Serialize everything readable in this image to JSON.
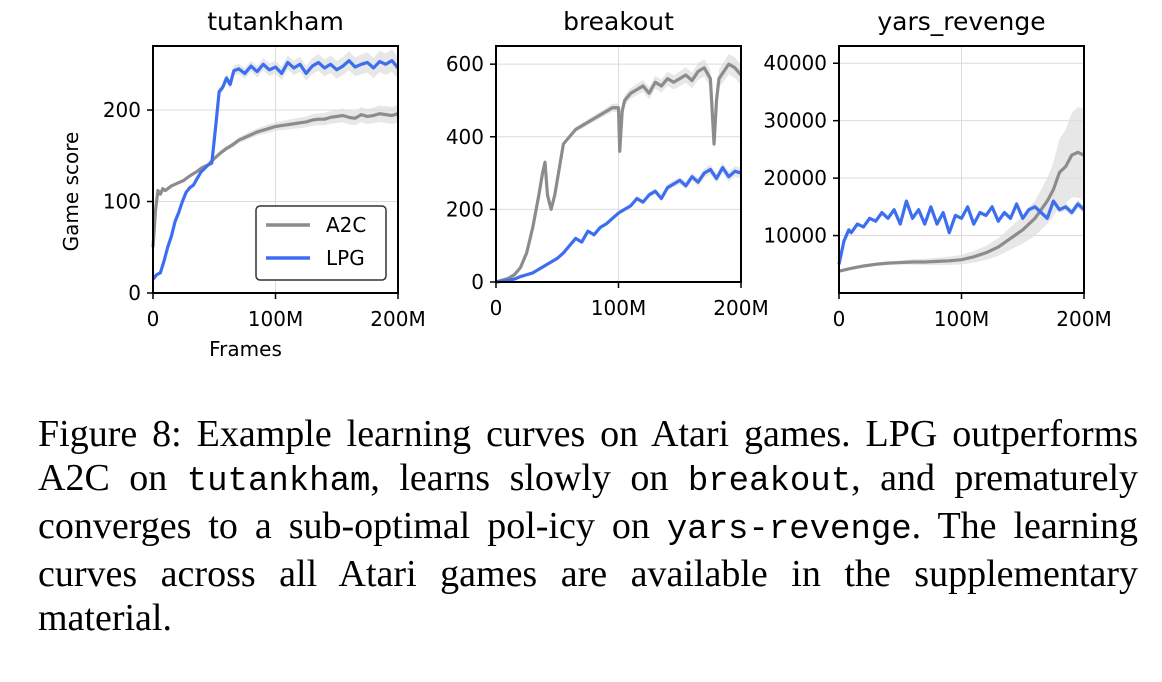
{
  "caption": {
    "seg1": "Figure 8:  Example learning curves on Atari games. LPG outperforms A2C on ",
    "code1": "tutankham",
    "seg2": ", learns slowly on ",
    "code2": "breakout",
    "seg3": ", and prematurely converges to a sub-optimal pol-icy on ",
    "code3": "yars-revenge",
    "seg4": ". The learning curves across all Atari games are available in the supplementary material."
  },
  "colors": {
    "A2C": "#8c8c8c",
    "LPG": "#3c6ef0",
    "band": "#dddddd",
    "grid": "#dcdcdc"
  },
  "chart_data": [
    {
      "type": "line",
      "title": "tutankham",
      "xlabel": "Frames",
      "ylabel": "Game score",
      "xlim": [
        0,
        200
      ],
      "ylim": [
        0,
        270
      ],
      "xticks": [
        0,
        100,
        200
      ],
      "xticklabels": [
        "0",
        "100M",
        "200M"
      ],
      "yticks": [
        0,
        100,
        200
      ],
      "yticklabels": [
        "0",
        "100",
        "200"
      ],
      "grid": true,
      "legend": "lower-right",
      "series": [
        {
          "name": "A2C",
          "x": [
            0,
            2,
            4,
            6,
            8,
            10,
            15,
            20,
            25,
            30,
            35,
            40,
            45,
            50,
            55,
            60,
            65,
            70,
            75,
            80,
            85,
            90,
            95,
            100,
            105,
            110,
            115,
            120,
            125,
            130,
            135,
            140,
            145,
            150,
            155,
            160,
            165,
            170,
            175,
            180,
            185,
            190,
            195,
            200
          ],
          "y": [
            50,
            90,
            112,
            108,
            114,
            112,
            117,
            120,
            123,
            128,
            132,
            137,
            140,
            147,
            153,
            158,
            162,
            167,
            170,
            173,
            176,
            178,
            180,
            182,
            183,
            184,
            185,
            186,
            187,
            189,
            190,
            190,
            192,
            193,
            194,
            192,
            191,
            195,
            193,
            194,
            196,
            195,
            194,
            196
          ]
        },
        {
          "name": "LPG",
          "x": [
            0,
            3,
            6,
            9,
            12,
            15,
            18,
            21,
            24,
            27,
            30,
            33,
            36,
            39,
            42,
            45,
            48,
            51,
            54,
            57,
            60,
            63,
            66,
            70,
            75,
            80,
            85,
            90,
            95,
            100,
            105,
            110,
            115,
            120,
            125,
            130,
            135,
            140,
            145,
            150,
            155,
            160,
            165,
            170,
            175,
            180,
            185,
            190,
            195,
            200
          ],
          "y": [
            15,
            20,
            22,
            35,
            50,
            62,
            78,
            88,
            100,
            110,
            115,
            118,
            125,
            132,
            136,
            140,
            142,
            180,
            220,
            225,
            235,
            228,
            243,
            245,
            240,
            248,
            242,
            250,
            244,
            247,
            240,
            252,
            246,
            250,
            240,
            248,
            252,
            246,
            250,
            244,
            248,
            254,
            247,
            250,
            252,
            246,
            253,
            250,
            254,
            246
          ]
        }
      ]
    },
    {
      "type": "line",
      "title": "breakout",
      "xlim": [
        0,
        200
      ],
      "ylim": [
        0,
        650
      ],
      "xticks": [
        0,
        100,
        200
      ],
      "xticklabels": [
        "0",
        "100M",
        "200M"
      ],
      "yticks": [
        0,
        200,
        400,
        600
      ],
      "yticklabels": [
        "0",
        "200",
        "400",
        "600"
      ],
      "grid": true,
      "series": [
        {
          "name": "A2C",
          "x": [
            0,
            5,
            10,
            15,
            20,
            25,
            30,
            35,
            38,
            40,
            42,
            45,
            48,
            50,
            55,
            60,
            65,
            70,
            75,
            80,
            85,
            90,
            95,
            100,
            101,
            103,
            105,
            110,
            115,
            120,
            125,
            130,
            135,
            140,
            145,
            150,
            155,
            160,
            165,
            170,
            175,
            178,
            180,
            182,
            185,
            190,
            195,
            200
          ],
          "y": [
            0,
            5,
            10,
            20,
            40,
            80,
            150,
            240,
            300,
            330,
            240,
            200,
            240,
            280,
            380,
            400,
            420,
            430,
            440,
            450,
            460,
            470,
            480,
            480,
            360,
            470,
            500,
            520,
            530,
            540,
            520,
            550,
            540,
            560,
            550,
            560,
            570,
            555,
            580,
            590,
            560,
            380,
            500,
            560,
            575,
            600,
            590,
            570
          ]
        },
        {
          "name": "LPG",
          "x": [
            0,
            5,
            10,
            15,
            20,
            25,
            30,
            35,
            40,
            45,
            50,
            55,
            60,
            65,
            70,
            75,
            80,
            85,
            90,
            95,
            100,
            105,
            110,
            115,
            120,
            125,
            130,
            135,
            140,
            145,
            150,
            155,
            160,
            165,
            170,
            175,
            180,
            185,
            190,
            195,
            200
          ],
          "y": [
            0,
            2,
            5,
            8,
            15,
            20,
            25,
            35,
            45,
            55,
            65,
            80,
            100,
            120,
            110,
            140,
            130,
            150,
            160,
            175,
            190,
            200,
            210,
            230,
            220,
            240,
            250,
            230,
            260,
            270,
            280,
            265,
            290,
            275,
            300,
            310,
            285,
            315,
            290,
            305,
            300
          ]
        }
      ]
    },
    {
      "type": "line",
      "title": "yars_revenge",
      "xlim": [
        0,
        200
      ],
      "ylim": [
        0,
        43000
      ],
      "xticks": [
        0,
        100,
        200
      ],
      "xticklabels": [
        "0",
        "100M",
        "200M"
      ],
      "yticks": [
        10000,
        20000,
        30000,
        40000
      ],
      "yticklabels": [
        "10000",
        "20000",
        "30000",
        "40000"
      ],
      "grid": true,
      "series": [
        {
          "name": "A2C",
          "x": [
            0,
            10,
            20,
            30,
            40,
            50,
            60,
            70,
            80,
            90,
            100,
            110,
            120,
            130,
            140,
            150,
            160,
            170,
            175,
            180,
            185,
            190,
            195,
            200
          ],
          "y": [
            3800,
            4300,
            4700,
            5000,
            5200,
            5300,
            5400,
            5400,
            5500,
            5600,
            5800,
            6300,
            7000,
            8000,
            9500,
            11000,
            13000,
            16000,
            18000,
            21000,
            22000,
            24000,
            24500,
            24000
          ]
        },
        {
          "name": "LPG",
          "x": [
            0,
            2,
            4,
            6,
            8,
            10,
            15,
            20,
            25,
            30,
            35,
            40,
            45,
            50,
            55,
            60,
            65,
            70,
            75,
            80,
            85,
            90,
            95,
            100,
            105,
            110,
            115,
            120,
            125,
            130,
            135,
            140,
            145,
            150,
            155,
            160,
            165,
            170,
            175,
            180,
            185,
            190,
            195,
            200
          ],
          "y": [
            5000,
            7000,
            9000,
            10000,
            11000,
            10500,
            12000,
            11500,
            13000,
            12500,
            14000,
            13000,
            14500,
            12000,
            16000,
            13000,
            14500,
            12000,
            15000,
            12000,
            14000,
            10500,
            13500,
            13000,
            15000,
            12000,
            14000,
            13500,
            15000,
            12500,
            14000,
            13000,
            15500,
            13000,
            14500,
            15000,
            14000,
            13000,
            16000,
            14500,
            15000,
            14000,
            15500,
            14500
          ]
        }
      ]
    }
  ]
}
